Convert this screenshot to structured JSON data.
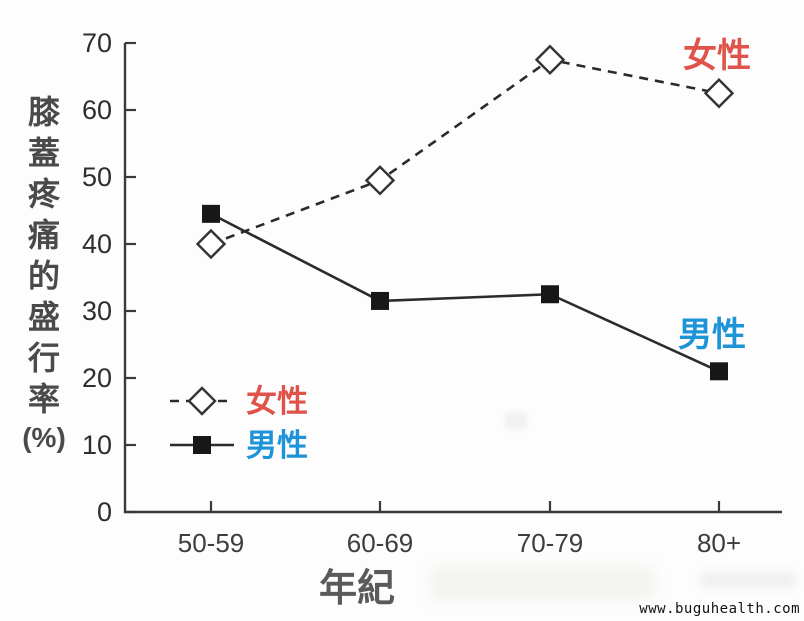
{
  "watermark": "www.buguhealth.com",
  "chart_data": {
    "type": "line",
    "title": "",
    "xlabel": "年紀",
    "ylabel": "膝蓋疼痛的盛行率",
    "ylabel_unit": "(%)",
    "categories": [
      "50-59",
      "60-69",
      "70-79",
      "80+"
    ],
    "ylim": [
      0,
      70
    ],
    "yticks": [
      0,
      10,
      20,
      30,
      40,
      50,
      60,
      70
    ],
    "grid": false,
    "legend_position": "inside-bottom-left",
    "series": [
      {
        "name": "女性",
        "values": [
          40,
          49.5,
          67.5,
          62.5
        ],
        "line_style": "dashed",
        "marker": "open-diamond",
        "line_color": "#2b2b2b",
        "label_color": "#e0534a"
      },
      {
        "name": "男性",
        "values": [
          44.5,
          31.5,
          32.5,
          21
        ],
        "line_style": "solid",
        "marker": "filled-square",
        "line_color": "#2b2b2b",
        "label_color": "#1d93d8"
      }
    ]
  }
}
